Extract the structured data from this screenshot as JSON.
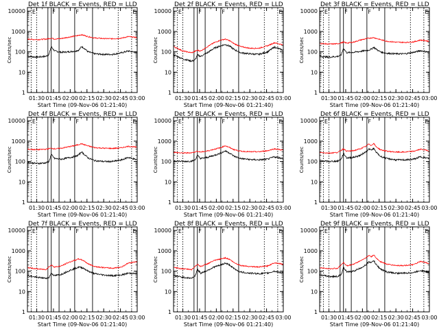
{
  "figure": {
    "ylabel": "Counts/sec",
    "xlabel": "Start Time (09-Nov-06 01:21:40)",
    "x_tick_labels": [
      "01:30",
      "01:45",
      "02:00",
      "02:15",
      "02:30",
      "02:45",
      "03:00"
    ],
    "y_tick_labels": [
      "1",
      "10",
      "100",
      "1000",
      "10000"
    ],
    "legend_text": "BLACK = Events, RED = LLD",
    "colors": {
      "events": "#000000",
      "lld": "#ff0000",
      "axes": "#000000"
    }
  },
  "chart_data": [
    {
      "type": "line",
      "title": "Det 1f BLACK = Events, RED = LLD",
      "x_range": [
        "01:21:40",
        "03:00"
      ],
      "y_scale": "log",
      "ylim": [
        1,
        15000
      ],
      "marker_labels": [
        "E",
        "F",
        "F",
        "E"
      ],
      "series": [
        {
          "name": "Events",
          "color": "#000000",
          "x": [
            "01:22",
            "01:30",
            "01:38",
            "01:41",
            "01:43",
            "01:46",
            "01:52",
            "01:58",
            "02:05",
            "02:08",
            "02:10",
            "02:12",
            "02:16",
            "02:22",
            "02:30",
            "02:38",
            "02:46",
            "02:52",
            "03:00"
          ],
          "y": [
            60,
            55,
            60,
            75,
            180,
            110,
            95,
            100,
            110,
            125,
            180,
            160,
            100,
            80,
            75,
            75,
            90,
            110,
            90
          ]
        },
        {
          "name": "LLD",
          "color": "#ff0000",
          "x": [
            "01:22",
            "01:30",
            "01:38",
            "01:43",
            "01:46",
            "01:52",
            "01:58",
            "02:05",
            "02:10",
            "02:16",
            "02:22",
            "02:30",
            "02:38",
            "02:46",
            "02:52",
            "03:00"
          ],
          "y": [
            420,
            400,
            420,
            470,
            430,
            450,
            520,
            600,
            700,
            560,
            480,
            450,
            440,
            470,
            560,
            500
          ]
        }
      ]
    },
    {
      "type": "line",
      "title": "Det 2f BLACK = Events, RED = LLD",
      "x_range": [
        "01:21:40",
        "03:00"
      ],
      "y_scale": "log",
      "ylim": [
        1,
        15000
      ],
      "marker_labels": [
        "E",
        "F",
        "F",
        "E"
      ],
      "series": [
        {
          "name": "Events",
          "color": "#000000",
          "x": [
            "01:22",
            "01:30",
            "01:38",
            "01:41",
            "01:43",
            "01:46",
            "01:52",
            "01:58",
            "02:04",
            "02:08",
            "02:12",
            "02:16",
            "02:22",
            "02:30",
            "02:38",
            "02:46",
            "02:52",
            "03:00"
          ],
          "y": [
            70,
            45,
            35,
            40,
            70,
            60,
            90,
            150,
            200,
            230,
            190,
            130,
            90,
            80,
            75,
            100,
            170,
            120
          ]
        },
        {
          "name": "LLD",
          "color": "#ff0000",
          "x": [
            "01:22",
            "01:30",
            "01:38",
            "01:43",
            "01:46",
            "01:52",
            "01:58",
            "02:04",
            "02:08",
            "02:12",
            "02:16",
            "02:22",
            "02:30",
            "02:38",
            "02:46",
            "02:52",
            "03:00"
          ],
          "y": [
            180,
            110,
            90,
            120,
            110,
            180,
            280,
            380,
            420,
            350,
            250,
            180,
            150,
            150,
            200,
            280,
            220
          ]
        }
      ]
    },
    {
      "type": "line",
      "title": "Det 3f BLACK = Events, RED = LLD",
      "x_range": [
        "01:21:40",
        "03:00"
      ],
      "y_scale": "log",
      "ylim": [
        1,
        15000
      ],
      "marker_labels": [
        "E",
        "F",
        "F",
        "E"
      ],
      "series": [
        {
          "name": "Events",
          "color": "#000000",
          "x": [
            "01:22",
            "01:30",
            "01:38",
            "01:41",
            "01:43",
            "01:46",
            "01:52",
            "01:58",
            "02:05",
            "02:08",
            "02:10",
            "02:12",
            "02:16",
            "02:22",
            "02:30",
            "02:38",
            "02:46",
            "02:52",
            "03:00"
          ],
          "y": [
            60,
            55,
            60,
            70,
            150,
            90,
            95,
            105,
            120,
            135,
            170,
            140,
            100,
            85,
            80,
            80,
            95,
            115,
            95
          ]
        },
        {
          "name": "LLD",
          "color": "#ff0000",
          "x": [
            "01:22",
            "01:30",
            "01:38",
            "01:43",
            "01:46",
            "01:52",
            "01:58",
            "02:05",
            "02:10",
            "02:16",
            "02:22",
            "02:30",
            "02:38",
            "02:46",
            "02:52",
            "03:00"
          ],
          "y": [
            260,
            240,
            250,
            300,
            270,
            300,
            380,
            460,
            500,
            400,
            330,
            300,
            290,
            310,
            380,
            330
          ]
        }
      ]
    },
    {
      "type": "line",
      "title": "Det 4f BLACK = Events, RED = LLD",
      "x_range": [
        "01:21:40",
        "03:00"
      ],
      "y_scale": "log",
      "ylim": [
        1,
        15000
      ],
      "marker_labels": [
        "E",
        "F",
        "F",
        "E"
      ],
      "series": [
        {
          "name": "Events",
          "color": "#000000",
          "x": [
            "01:22",
            "01:30",
            "01:38",
            "01:41",
            "01:43",
            "01:46",
            "01:52",
            "01:58",
            "02:05",
            "02:08",
            "02:10",
            "02:12",
            "02:16",
            "02:22",
            "02:30",
            "02:38",
            "02:46",
            "02:52",
            "03:00"
          ],
          "y": [
            90,
            80,
            85,
            100,
            220,
            140,
            130,
            150,
            180,
            220,
            300,
            240,
            150,
            110,
            100,
            100,
            120,
            160,
            120
          ]
        },
        {
          "name": "LLD",
          "color": "#ff0000",
          "x": [
            "01:22",
            "01:30",
            "01:38",
            "01:43",
            "01:46",
            "01:52",
            "01:58",
            "02:05",
            "02:10",
            "02:16",
            "02:22",
            "02:30",
            "02:38",
            "02:46",
            "02:52",
            "03:00"
          ],
          "y": [
            400,
            380,
            400,
            450,
            420,
            450,
            520,
            620,
            750,
            580,
            480,
            450,
            440,
            470,
            560,
            500
          ]
        }
      ]
    },
    {
      "type": "line",
      "title": "Det 5f BLACK = Events, RED = LLD",
      "x_range": [
        "01:21:40",
        "03:00"
      ],
      "y_scale": "log",
      "ylim": [
        1,
        15000
      ],
      "marker_labels": [
        "E",
        "F",
        "F",
        "E"
      ],
      "series": [
        {
          "name": "Events",
          "color": "#000000",
          "x": [
            "01:22",
            "01:30",
            "01:38",
            "01:41",
            "01:43",
            "01:46",
            "01:52",
            "01:58",
            "02:04",
            "02:08",
            "02:12",
            "02:16",
            "02:22",
            "02:30",
            "02:38",
            "02:46",
            "02:52",
            "03:00"
          ],
          "y": [
            110,
            100,
            105,
            120,
            200,
            140,
            160,
            200,
            260,
            330,
            260,
            180,
            140,
            125,
            120,
            130,
            170,
            140
          ]
        },
        {
          "name": "LLD",
          "color": "#ff0000",
          "x": [
            "01:22",
            "01:30",
            "01:38",
            "01:43",
            "01:46",
            "01:52",
            "01:58",
            "02:04",
            "02:08",
            "02:12",
            "02:16",
            "02:22",
            "02:30",
            "02:38",
            "02:46",
            "02:52",
            "03:00"
          ],
          "y": [
            280,
            260,
            270,
            320,
            290,
            330,
            400,
            480,
            600,
            480,
            380,
            320,
            300,
            300,
            340,
            420,
            360
          ]
        }
      ]
    },
    {
      "type": "line",
      "title": "Det 6f BLACK = Events, RED = LLD",
      "x_range": [
        "01:21:40",
        "03:00"
      ],
      "y_scale": "log",
      "ylim": [
        1,
        15000
      ],
      "marker_labels": [
        "E",
        "F",
        "F",
        "E"
      ],
      "series": [
        {
          "name": "Events",
          "color": "#000000",
          "x": [
            "01:22",
            "01:30",
            "01:38",
            "01:41",
            "01:43",
            "01:46",
            "01:52",
            "01:58",
            "02:03",
            "02:06",
            "02:08",
            "02:10",
            "02:12",
            "02:16",
            "02:22",
            "02:30",
            "02:38",
            "02:46",
            "02:52",
            "03:00"
          ],
          "y": [
            110,
            100,
            105,
            130,
            250,
            150,
            160,
            200,
            300,
            420,
            350,
            450,
            300,
            180,
            140,
            120,
            120,
            130,
            170,
            140
          ]
        },
        {
          "name": "LLD",
          "color": "#ff0000",
          "x": [
            "01:22",
            "01:30",
            "01:38",
            "01:43",
            "01:46",
            "01:52",
            "01:58",
            "02:03",
            "02:06",
            "02:08",
            "02:10",
            "02:12",
            "02:16",
            "02:22",
            "02:30",
            "02:38",
            "02:46",
            "02:52",
            "03:00"
          ],
          "y": [
            280,
            260,
            280,
            420,
            320,
            340,
            420,
            550,
            750,
            600,
            800,
            550,
            380,
            320,
            290,
            290,
            320,
            400,
            340
          ]
        }
      ]
    },
    {
      "type": "line",
      "title": "Det 7f BLACK = Events, RED = LLD",
      "x_range": [
        "01:21:40",
        "03:00"
      ],
      "y_scale": "log",
      "ylim": [
        1,
        15000
      ],
      "marker_labels": [
        "E",
        "F",
        "F",
        "E"
      ],
      "series": [
        {
          "name": "Events",
          "color": "#000000",
          "x": [
            "01:22",
            "01:30",
            "01:38",
            "01:41",
            "01:43",
            "01:46",
            "01:52",
            "01:58",
            "02:03",
            "02:08",
            "02:12",
            "02:16",
            "02:22",
            "02:30",
            "02:38",
            "02:46",
            "02:52",
            "03:00"
          ],
          "y": [
            60,
            50,
            45,
            48,
            80,
            60,
            70,
            100,
            130,
            160,
            140,
            100,
            75,
            65,
            60,
            65,
            80,
            75
          ]
        },
        {
          "name": "LLD",
          "color": "#ff0000",
          "x": [
            "01:22",
            "01:30",
            "01:38",
            "01:43",
            "01:46",
            "01:52",
            "01:58",
            "02:03",
            "02:08",
            "02:12",
            "02:16",
            "02:22",
            "02:30",
            "02:38",
            "02:46",
            "02:52",
            "03:00"
          ],
          "y": [
            150,
            130,
            120,
            200,
            160,
            180,
            260,
            330,
            400,
            330,
            230,
            170,
            150,
            140,
            160,
            250,
            300
          ]
        }
      ]
    },
    {
      "type": "line",
      "title": "Det 8f BLACK = Events, RED = LLD",
      "x_range": [
        "01:21:40",
        "03:00"
      ],
      "y_scale": "log",
      "ylim": [
        1,
        15000
      ],
      "marker_labels": [
        "E",
        "F",
        "F",
        "E"
      ],
      "series": [
        {
          "name": "Events",
          "color": "#000000",
          "x": [
            "01:22",
            "01:30",
            "01:38",
            "01:41",
            "01:43",
            "01:46",
            "01:52",
            "01:58",
            "02:04",
            "02:08",
            "02:12",
            "02:16",
            "02:22",
            "02:30",
            "02:38",
            "02:46",
            "02:52",
            "03:00"
          ],
          "y": [
            60,
            50,
            45,
            60,
            120,
            80,
            110,
            160,
            200,
            250,
            200,
            130,
            90,
            80,
            75,
            80,
            100,
            80
          ]
        },
        {
          "name": "LLD",
          "color": "#ff0000",
          "x": [
            "01:22",
            "01:30",
            "01:38",
            "01:43",
            "01:46",
            "01:52",
            "01:58",
            "02:04",
            "02:08",
            "02:12",
            "02:16",
            "02:22",
            "02:30",
            "02:38",
            "02:46",
            "02:52",
            "03:00"
          ],
          "y": [
            150,
            130,
            120,
            220,
            170,
            230,
            330,
            400,
            450,
            380,
            260,
            190,
            170,
            160,
            180,
            260,
            220
          ]
        }
      ]
    },
    {
      "type": "line",
      "title": "Det 9f BLACK = Events, RED = LLD",
      "x_range": [
        "01:21:40",
        "03:00"
      ],
      "y_scale": "log",
      "ylim": [
        1,
        15000
      ],
      "marker_labels": [
        "E",
        "F",
        "F",
        "E"
      ],
      "series": [
        {
          "name": "Events",
          "color": "#000000",
          "x": [
            "01:22",
            "01:30",
            "01:38",
            "01:41",
            "01:43",
            "01:46",
            "01:52",
            "01:58",
            "02:03",
            "02:06",
            "02:08",
            "02:10",
            "02:12",
            "02:16",
            "02:22",
            "02:30",
            "02:38",
            "02:46",
            "02:52",
            "03:00"
          ],
          "y": [
            65,
            55,
            55,
            70,
            150,
            90,
            100,
            140,
            200,
            300,
            250,
            350,
            220,
            130,
            90,
            80,
            80,
            85,
            110,
            85
          ]
        },
        {
          "name": "LLD",
          "color": "#ff0000",
          "x": [
            "01:22",
            "01:30",
            "01:38",
            "01:43",
            "01:46",
            "01:52",
            "01:58",
            "02:03",
            "02:06",
            "02:08",
            "02:10",
            "02:12",
            "02:16",
            "02:22",
            "02:30",
            "02:38",
            "02:46",
            "02:52",
            "03:00"
          ],
          "y": [
            150,
            130,
            140,
            270,
            180,
            220,
            320,
            450,
            600,
            500,
            650,
            450,
            300,
            220,
            190,
            190,
            210,
            300,
            240
          ]
        }
      ]
    }
  ]
}
